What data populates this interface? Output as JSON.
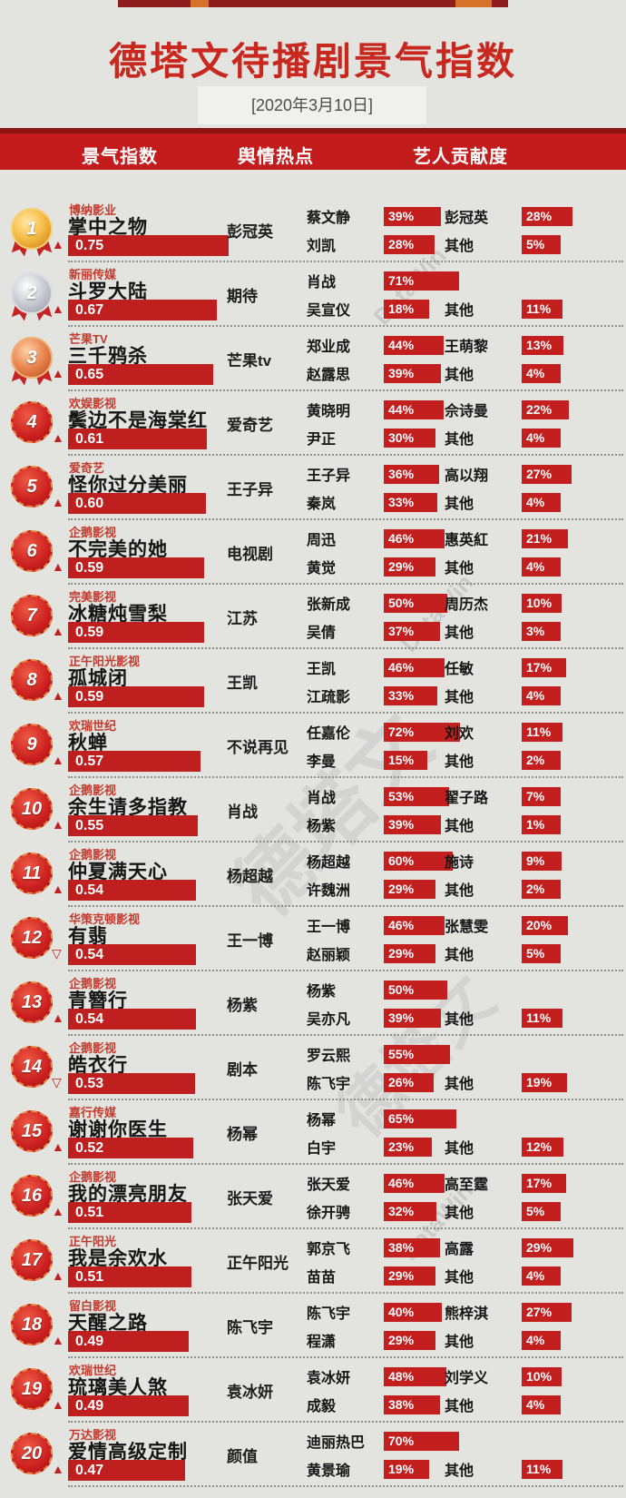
{
  "page": {
    "background": "#e3e3e0",
    "accent_red": "#c41c1c",
    "bar_red": "#bf1f1f",
    "title_red": "#c8281e"
  },
  "header": {
    "title": "德塔文待播剧景气指数",
    "date": "[2020年3月10日]"
  },
  "columns": {
    "index": "景气指数",
    "hotspot": "舆情热点",
    "contribution": "艺人贡献度"
  },
  "watermarks": [
    "DataWin",
    "德塔文"
  ],
  "icons": {
    "trend_up": "▲",
    "trend_down": "▽"
  },
  "chart_data": {
    "type": "bar",
    "title": "德塔文待播剧景气指数",
    "date": "[2020年3月10日]",
    "index_label": "景气指数",
    "hotspot_label": "舆情热点",
    "contribution_label": "艺人贡献度",
    "index_range": [
      0,
      1
    ],
    "rows": [
      {
        "rank": 1,
        "studio": "博纳影业",
        "title": "掌中之物",
        "trend": "up",
        "index": "0.75",
        "hotspot": "彭冠英",
        "artists": [
          {
            "name": "蔡文静",
            "pct": 39
          },
          {
            "name": "刘凯",
            "pct": 28
          },
          {
            "name": "彭冠英",
            "pct": 28
          },
          {
            "name": "其他",
            "pct": 5
          }
        ]
      },
      {
        "rank": 2,
        "studio": "新丽传媒",
        "title": "斗罗大陆",
        "trend": "up",
        "index": "0.67",
        "hotspot": "期待",
        "artists": [
          {
            "name": "肖战",
            "pct": 71
          },
          {
            "name": "吴宣仪",
            "pct": 18
          },
          null,
          {
            "name": "其他",
            "pct": 11
          }
        ]
      },
      {
        "rank": 3,
        "studio": "芒果TV",
        "title": "三千鸦杀",
        "trend": "up",
        "index": "0.65",
        "hotspot": "芒果tv",
        "artists": [
          {
            "name": "郑业成",
            "pct": 44
          },
          {
            "name": "赵露思",
            "pct": 39
          },
          {
            "name": "王萌黎",
            "pct": 13
          },
          {
            "name": "其他",
            "pct": 4
          }
        ]
      },
      {
        "rank": 4,
        "studio": "欢娱影视",
        "title": "鬓边不是海棠红",
        "trend": "up",
        "index": "0.61",
        "hotspot": "爱奇艺",
        "artists": [
          {
            "name": "黄晓明",
            "pct": 44
          },
          {
            "name": "尹正",
            "pct": 30
          },
          {
            "name": "佘诗曼",
            "pct": 22
          },
          {
            "name": "其他",
            "pct": 4
          }
        ]
      },
      {
        "rank": 5,
        "studio": "爱奇艺",
        "title": "怪你过分美丽",
        "trend": "up",
        "index": "0.60",
        "hotspot": "王子异",
        "artists": [
          {
            "name": "王子异",
            "pct": 36
          },
          {
            "name": "秦岚",
            "pct": 33
          },
          {
            "name": "高以翔",
            "pct": 27
          },
          {
            "name": "其他",
            "pct": 4
          }
        ]
      },
      {
        "rank": 6,
        "studio": "企鹅影视",
        "title": "不完美的她",
        "trend": "up",
        "index": "0.59",
        "hotspot": "电视剧",
        "artists": [
          {
            "name": "周迅",
            "pct": 46
          },
          {
            "name": "黄觉",
            "pct": 29
          },
          {
            "name": "惠英紅",
            "pct": 21
          },
          {
            "name": "其他",
            "pct": 4
          }
        ]
      },
      {
        "rank": 7,
        "studio": "完美影视",
        "title": "冰糖炖雪梨",
        "trend": "up",
        "index": "0.59",
        "hotspot": "江苏",
        "artists": [
          {
            "name": "张新成",
            "pct": 50
          },
          {
            "name": "吴倩",
            "pct": 37
          },
          {
            "name": "周历杰",
            "pct": 10
          },
          {
            "name": "其他",
            "pct": 3
          }
        ]
      },
      {
        "rank": 8,
        "studio": "正午阳光影视",
        "title": "孤城闭",
        "trend": "up",
        "index": "0.59",
        "hotspot": "王凯",
        "artists": [
          {
            "name": "王凯",
            "pct": 46
          },
          {
            "name": "江疏影",
            "pct": 33
          },
          {
            "name": "任敏",
            "pct": 17
          },
          {
            "name": "其他",
            "pct": 4
          }
        ]
      },
      {
        "rank": 9,
        "studio": "欢瑞世纪",
        "title": "秋蝉",
        "trend": "up",
        "index": "0.57",
        "hotspot": "不说再见",
        "artists": [
          {
            "name": "任嘉伦",
            "pct": 72
          },
          {
            "name": "李曼",
            "pct": 15
          },
          {
            "name": "刘欢",
            "pct": 11
          },
          {
            "name": "其他",
            "pct": 2
          }
        ]
      },
      {
        "rank": 10,
        "studio": "企鹅影视",
        "title": "余生请多指教",
        "trend": "up",
        "index": "0.55",
        "hotspot": "肖战",
        "artists": [
          {
            "name": "肖战",
            "pct": 53
          },
          {
            "name": "杨紫",
            "pct": 39
          },
          {
            "name": "翟子路",
            "pct": 7
          },
          {
            "name": "其他",
            "pct": 1
          }
        ]
      },
      {
        "rank": 11,
        "studio": "企鹅影视",
        "title": "仲夏满天心",
        "trend": "up",
        "index": "0.54",
        "hotspot": "杨超越",
        "artists": [
          {
            "name": "杨超越",
            "pct": 60
          },
          {
            "name": "许魏洲",
            "pct": 29
          },
          {
            "name": "施诗",
            "pct": 9
          },
          {
            "name": "其他",
            "pct": 2
          }
        ]
      },
      {
        "rank": 12,
        "studio": "华策克顿影视",
        "title": "有翡",
        "trend": "down",
        "index": "0.54",
        "hotspot": "王一博",
        "artists": [
          {
            "name": "王一博",
            "pct": 46
          },
          {
            "name": "赵丽颖",
            "pct": 29
          },
          {
            "name": "张慧雯",
            "pct": 20
          },
          {
            "name": "其他",
            "pct": 5
          }
        ]
      },
      {
        "rank": 13,
        "studio": "企鹅影视",
        "title": "青簪行",
        "trend": "up",
        "index": "0.54",
        "hotspot": "杨紫",
        "artists": [
          {
            "name": "杨紫",
            "pct": 50
          },
          {
            "name": "吴亦凡",
            "pct": 39
          },
          null,
          {
            "name": "其他",
            "pct": 11
          }
        ]
      },
      {
        "rank": 14,
        "studio": "企鹅影视",
        "title": "皓衣行",
        "trend": "down",
        "index": "0.53",
        "hotspot": "剧本",
        "artists": [
          {
            "name": "罗云熙",
            "pct": 55
          },
          {
            "name": "陈飞宇",
            "pct": 26
          },
          null,
          {
            "name": "其他",
            "pct": 19
          }
        ]
      },
      {
        "rank": 15,
        "studio": "嘉行传媒",
        "title": "谢谢你医生",
        "trend": "up",
        "index": "0.52",
        "hotspot": "杨幂",
        "artists": [
          {
            "name": "杨幂",
            "pct": 65
          },
          {
            "name": "白宇",
            "pct": 23
          },
          null,
          {
            "name": "其他",
            "pct": 12
          }
        ]
      },
      {
        "rank": 16,
        "studio": "企鹅影视",
        "title": "我的漂亮朋友",
        "trend": "up",
        "index": "0.51",
        "hotspot": "张天爱",
        "artists": [
          {
            "name": "张天爱",
            "pct": 46
          },
          {
            "name": "徐开骋",
            "pct": 32
          },
          {
            "name": "高至霆",
            "pct": 17
          },
          {
            "name": "其他",
            "pct": 5
          }
        ]
      },
      {
        "rank": 17,
        "studio": "正午阳光",
        "title": "我是余欢水",
        "trend": "up",
        "index": "0.51",
        "hotspot": "正午阳光",
        "artists": [
          {
            "name": "郭京飞",
            "pct": 38
          },
          {
            "name": "苗苗",
            "pct": 29
          },
          {
            "name": "高露",
            "pct": 29
          },
          {
            "name": "其他",
            "pct": 4
          }
        ]
      },
      {
        "rank": 18,
        "studio": "留白影视",
        "title": "天醒之路",
        "trend": "up",
        "index": "0.49",
        "hotspot": "陈飞宇",
        "artists": [
          {
            "name": "陈飞宇",
            "pct": 40
          },
          {
            "name": "程潇",
            "pct": 29
          },
          {
            "name": "熊梓淇",
            "pct": 27
          },
          {
            "name": "其他",
            "pct": 4
          }
        ]
      },
      {
        "rank": 19,
        "studio": "欢瑞世纪",
        "title": "琉璃美人煞",
        "trend": "up",
        "index": "0.49",
        "hotspot": "袁冰妍",
        "artists": [
          {
            "name": "袁冰妍",
            "pct": 48
          },
          {
            "name": "成毅",
            "pct": 38
          },
          {
            "name": "刘学义",
            "pct": 10
          },
          {
            "name": "其他",
            "pct": 4
          }
        ]
      },
      {
        "rank": 20,
        "studio": "万达影视",
        "title": "爱情高级定制",
        "trend": "up",
        "index": "0.47",
        "hotspot": "颜值",
        "artists": [
          {
            "name": "迪丽热巴",
            "pct": 70
          },
          {
            "name": "黄景瑜",
            "pct": 19
          },
          null,
          {
            "name": "其他",
            "pct": 11
          }
        ]
      }
    ]
  }
}
